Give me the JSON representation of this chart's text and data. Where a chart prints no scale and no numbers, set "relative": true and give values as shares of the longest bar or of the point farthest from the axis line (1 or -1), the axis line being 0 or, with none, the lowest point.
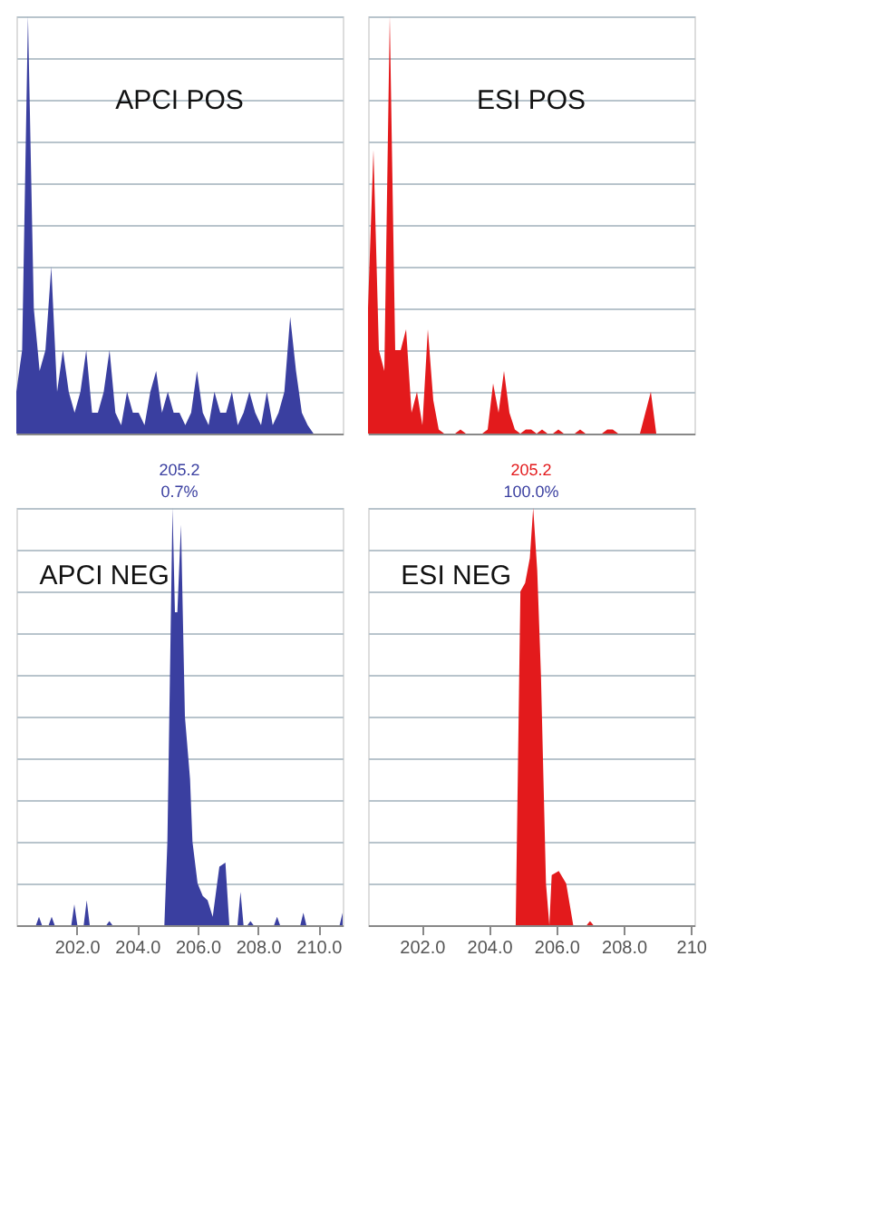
{
  "chart_data": [
    {
      "type": "area",
      "title": "APCI POS",
      "relative": true,
      "tick_labels": false,
      "grid": "y",
      "categories": [
        null,
        null,
        null,
        null,
        null,
        null,
        null,
        null,
        null,
        null,
        null,
        null,
        null,
        null,
        null,
        null,
        null,
        null,
        null,
        null,
        null,
        null,
        null,
        null,
        null,
        null,
        null,
        null,
        null,
        null,
        null,
        null,
        null,
        null,
        null,
        null,
        null,
        null,
        null,
        null,
        null,
        null,
        null,
        null,
        null,
        null,
        null,
        null,
        null,
        null,
        null,
        null,
        null,
        null,
        null,
        null,
        null
      ],
      "series": [
        {
          "color": "#3a3fa0",
          "values": [
            0.1,
            0.2,
            1.0,
            0.3,
            0.15,
            0.2,
            0.4,
            0.1,
            0.2,
            0.1,
            0.05,
            0.1,
            0.2,
            0.05,
            0.05,
            0.1,
            0.2,
            0.05,
            0.02,
            0.1,
            0.05,
            0.05,
            0.02,
            0.1,
            0.15,
            0.05,
            0.1,
            0.05,
            0.05,
            0.02,
            0.05,
            0.15,
            0.05,
            0.02,
            0.1,
            0.05,
            0.05,
            0.1,
            0.02,
            0.05,
            0.1,
            0.05,
            0.02,
            0.1,
            0.02,
            0.05,
            0.1,
            0.28,
            0.15,
            0.05,
            0.02,
            0,
            0,
            0,
            0,
            0,
            0
          ]
        }
      ]
    },
    {
      "type": "area",
      "title": "ESI POS",
      "relative": true,
      "tick_labels": false,
      "grid": "y",
      "categories": [
        null,
        null,
        null,
        null,
        null,
        null,
        null,
        null,
        null,
        null,
        null,
        null,
        null,
        null,
        null,
        null,
        null,
        null,
        null,
        null,
        null,
        null,
        null,
        null,
        null,
        null,
        null,
        null,
        null,
        null,
        null,
        null,
        null,
        null,
        null,
        null,
        null,
        null,
        null,
        null,
        null,
        null,
        null,
        null,
        null,
        null,
        null,
        null,
        null,
        null,
        null,
        null,
        null,
        null,
        null,
        null,
        null,
        null,
        null,
        null,
        null
      ],
      "series": [
        {
          "color": "#e31a1c",
          "values": [
            0.3,
            0.68,
            0.2,
            0.15,
            1.0,
            0.2,
            0.2,
            0.25,
            0.05,
            0.1,
            0.02,
            0.25,
            0.08,
            0.01,
            0,
            0,
            0,
            0.01,
            0,
            0,
            0,
            0,
            0.01,
            0.12,
            0.05,
            0.15,
            0.05,
            0.01,
            0,
            0.01,
            0.01,
            0,
            0.01,
            0,
            0,
            0.01,
            0,
            0,
            0,
            0.01,
            0,
            0,
            0,
            0,
            0.01,
            0.01,
            0,
            0,
            0,
            0,
            0,
            0.05,
            0.1,
            0,
            0,
            0,
            0,
            0,
            0,
            0,
            0
          ]
        }
      ]
    },
    {
      "type": "area",
      "title": "APCI NEG",
      "relative": true,
      "tick_labels": "x",
      "grid": "y",
      "annotations": [
        "205.2",
        "0.7%"
      ],
      "xlim": [
        200,
        210.8
      ],
      "xticks": [
        {
          "value": 202,
          "label": "202.0"
        },
        {
          "value": 204,
          "label": "204.0"
        },
        {
          "value": 206,
          "label": "206.0"
        },
        {
          "value": 208,
          "label": "208.0"
        },
        {
          "value": 210,
          "label": "210.0"
        }
      ],
      "series": [
        {
          "color": "#3a3fa0",
          "x": [
            200.65,
            200.75,
            200.85,
            201.07,
            201.17,
            201.27,
            201.82,
            201.92,
            202.02,
            202.23,
            202.33,
            202.43,
            202.98,
            203.08,
            203.18,
            204.9,
            205.0,
            205.17,
            205.25,
            205.33,
            205.45,
            205.58,
            205.75,
            205.83,
            206.0,
            206.17,
            206.33,
            206.5,
            206.72,
            206.92,
            207.05,
            207.32,
            207.42,
            207.52,
            207.65,
            207.75,
            207.85,
            208.53,
            208.63,
            208.73,
            209.4,
            209.5,
            209.6,
            210.7,
            210.8
          ],
          "values": [
            0,
            0.02,
            0,
            0,
            0.02,
            0,
            0,
            0.05,
            0,
            0,
            0.06,
            0,
            0,
            0.01,
            0,
            0,
            0.2,
            1.0,
            0.75,
            0.75,
            0.96,
            0.5,
            0.35,
            0.2,
            0.1,
            0.07,
            0.06,
            0.02,
            0.14,
            0.15,
            0,
            0,
            0.08,
            0,
            0,
            0.01,
            0,
            0,
            0.02,
            0,
            0,
            0.03,
            0,
            0,
            0.03
          ]
        }
      ]
    },
    {
      "type": "area",
      "title": "ESI NEG",
      "relative": true,
      "tick_labels": "x",
      "grid": "y",
      "annotations": [
        "205.2",
        "100.0%"
      ],
      "xlim": [
        200.4,
        210.1
      ],
      "xticks": [
        {
          "value": 202,
          "label": "202.0"
        },
        {
          "value": 204,
          "label": "204.0"
        },
        {
          "value": 206,
          "label": "206.0"
        },
        {
          "value": 208,
          "label": "208.0"
        },
        {
          "value": 210,
          "label": "210"
        }
      ],
      "series": [
        {
          "color": "#e31a1c",
          "x": [
            204.79,
            204.93,
            205.07,
            205.21,
            205.31,
            205.43,
            205.54,
            205.69,
            205.79,
            205.86,
            206.07,
            206.29,
            206.5,
            206.9,
            207.0,
            207.1
          ],
          "values": [
            0,
            0.8,
            0.82,
            0.88,
            1.0,
            0.85,
            0.6,
            0.1,
            0,
            0.12,
            0.13,
            0.1,
            0,
            0,
            0.01,
            0
          ]
        }
      ]
    }
  ]
}
